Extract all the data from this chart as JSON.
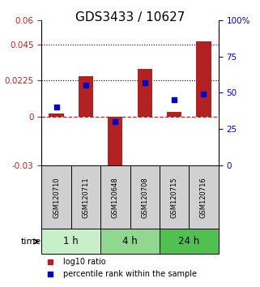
{
  "title": "GDS3433 / 10627",
  "samples": [
    "GSM120710",
    "GSM120711",
    "GSM120648",
    "GSM120708",
    "GSM120715",
    "GSM120716"
  ],
  "log10_ratio": [
    0.002,
    0.025,
    -0.035,
    0.03,
    0.003,
    0.047
  ],
  "percentile_rank": [
    40,
    55,
    30,
    57,
    45,
    49
  ],
  "ylim_left": [
    -0.03,
    0.06
  ],
  "ylim_right": [
    0,
    100
  ],
  "yticks_left": [
    -0.03,
    0,
    0.0225,
    0.045,
    0.06
  ],
  "ytick_labels_left": [
    "-0.03",
    "0",
    "0.0225",
    "0.045",
    "0.06"
  ],
  "yticks_right": [
    0,
    25,
    50,
    75,
    100
  ],
  "ytick_labels_right": [
    "0",
    "25",
    "50",
    "75",
    "100%"
  ],
  "hlines_dotted": [
    0.045,
    0.0225
  ],
  "hline_dashed": 0,
  "bar_color": "#b22222",
  "dot_color": "#0000cd",
  "time_groups": [
    {
      "label": "1 h",
      "samples": [
        "GSM120710",
        "GSM120711"
      ],
      "color": "#c8f0c8"
    },
    {
      "label": "4 h",
      "samples": [
        "GSM120648",
        "GSM120708"
      ],
      "color": "#90d890"
    },
    {
      "label": "24 h",
      "samples": [
        "GSM120715",
        "GSM120716"
      ],
      "color": "#50c050"
    }
  ],
  "xlabel_time": "time",
  "legend_red": "log10 ratio",
  "legend_blue": "percentile rank within the sample",
  "title_fontsize": 11,
  "label_fontsize": 8,
  "tick_fontsize": 7.5
}
